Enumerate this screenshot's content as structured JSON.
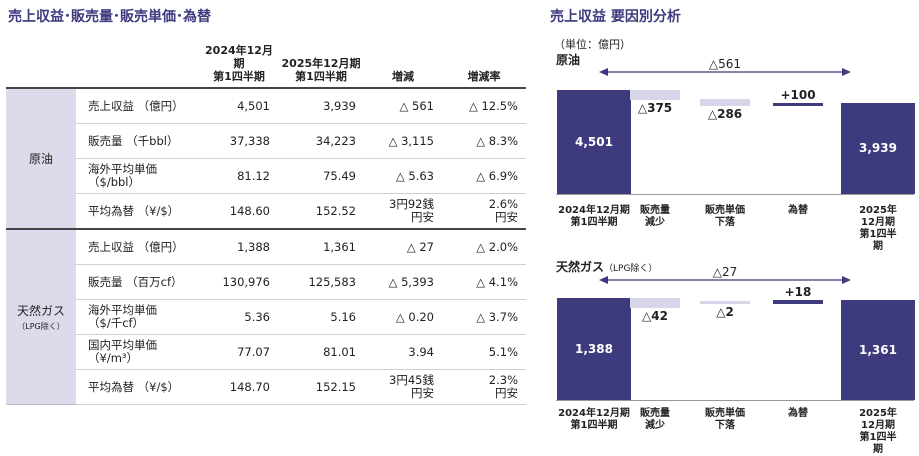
{
  "titles": {
    "left": "売上収益･販売量･販売単価･為替",
    "right": "売上収益 要因別分析"
  },
  "table": {
    "headers": {
      "col1": "2024年12月期\n第1四半期",
      "col2": "2025年12月期\n第1四半期",
      "col3": "増減",
      "col4": "増減率"
    },
    "groups": [
      {
        "name": "原油",
        "sub": "",
        "rows": [
          {
            "item": "売上収益 （億円）",
            "v1": "4,501",
            "v2": "3,939",
            "diff": "△ 561",
            "rate": "△ 12.5%"
          },
          {
            "item": "販売量 （千bbl）",
            "v1": "37,338",
            "v2": "34,223",
            "diff": "△ 3,115",
            "rate": "△ 8.3%"
          },
          {
            "item": "海外平均単価\n（$/bbl）",
            "v1": "81.12",
            "v2": "75.49",
            "diff": "△ 5.63",
            "rate": "△ 6.9%"
          },
          {
            "item": "平均為替 （¥/$）",
            "v1": "148.60",
            "v2": "152.52",
            "diff": "3円92銭\n円安",
            "rate": "2.6%\n円安"
          }
        ]
      },
      {
        "name": "天然ガス",
        "sub": "（LPG除く）",
        "rows": [
          {
            "item": "売上収益 （億円）",
            "v1": "1,388",
            "v2": "1,361",
            "diff": "△ 27",
            "rate": "△ 2.0%"
          },
          {
            "item": "販売量 （百万cf）",
            "v1": "130,976",
            "v2": "125,583",
            "diff": "△ 5,393",
            "rate": "△ 4.1%"
          },
          {
            "item": "海外平均単価\n（$/千cf）",
            "v1": "5.36",
            "v2": "5.16",
            "diff": "△ 0.20",
            "rate": "△ 3.7%"
          },
          {
            "item": "国内平均単価\n（¥/m³）",
            "v1": "77.07",
            "v2": "81.01",
            "diff": "3.94",
            "rate": "5.1%"
          },
          {
            "item": "平均為替 （¥/$）",
            "v1": "148.70",
            "v2": "152.15",
            "diff": "3円45銭\n円安",
            "rate": "2.3%\n円安"
          }
        ]
      }
    ]
  },
  "chart": {
    "unit": "（単位：億円）",
    "colors": {
      "bar": "#3d3a7e",
      "neg": "#d6d5ea",
      "pos": "#3d3a7e"
    },
    "categories": [
      "2024年12月期\n第1四半期",
      "販売量\n減少",
      "販売単価\n下落",
      "為替",
      "2025年12月期\n第1四半期"
    ]
  },
  "chart_data": [
    {
      "type": "bar",
      "title": "原油",
      "title_note": "",
      "categories": [
        "2024年12月期\n第1四半期",
        "販売量\n減少",
        "販売単価\n下落",
        "為替",
        "2025年12月期\n第1四半期"
      ],
      "values": [
        4501,
        -375,
        -286,
        100,
        3939
      ],
      "labels": [
        "4,501",
        "△375",
        "△286",
        "+100",
        "3,939"
      ],
      "total_change_label": "△561"
    },
    {
      "type": "bar",
      "title": "天然ガス",
      "title_note": "（LPG除く）",
      "categories": [
        "2024年12月期\n第1四半期",
        "販売量\n減少",
        "販売単価\n下落",
        "為替",
        "2025年12月期\n第1四半期"
      ],
      "values": [
        1388,
        -42,
        -2,
        18,
        1361
      ],
      "labels": [
        "1,388",
        "△42",
        "△2",
        "+18",
        "1,361"
      ],
      "total_change_label": "△27"
    }
  ]
}
